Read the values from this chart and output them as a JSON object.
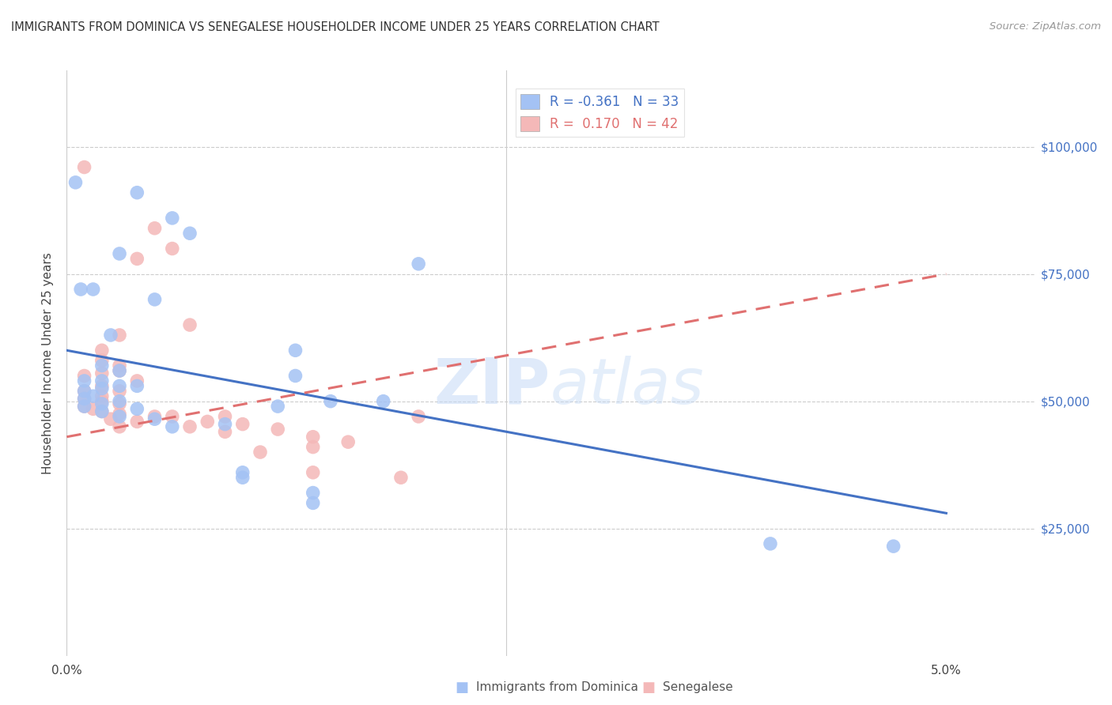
{
  "title": "IMMIGRANTS FROM DOMINICA VS SENEGALESE HOUSEHOLDER INCOME UNDER 25 YEARS CORRELATION CHART",
  "source": "Source: ZipAtlas.com",
  "ylabel": "Householder Income Under 25 years",
  "xmin": 0.0,
  "xmax": 0.055,
  "ymin": 0,
  "ymax": 115000,
  "yticks": [
    25000,
    50000,
    75000,
    100000
  ],
  "ytick_labels": [
    "$25,000",
    "$50,000",
    "$75,000",
    "$100,000"
  ],
  "color_blue": "#a4c2f4",
  "color_pink": "#f4b8b8",
  "color_blue_line": "#4472c4",
  "color_pink_line": "#e07070",
  "background_color": "#ffffff",
  "watermark": "ZIPatlas",
  "blue_points": [
    [
      0.0008,
      72000
    ],
    [
      0.005,
      70000
    ],
    [
      0.004,
      91000
    ],
    [
      0.006,
      86000
    ],
    [
      0.007,
      83000
    ],
    [
      0.003,
      79000
    ],
    [
      0.0015,
      72000
    ],
    [
      0.0025,
      63000
    ],
    [
      0.002,
      57000
    ],
    [
      0.003,
      56000
    ],
    [
      0.002,
      54000
    ],
    [
      0.001,
      54000
    ],
    [
      0.003,
      53000
    ],
    [
      0.002,
      52500
    ],
    [
      0.004,
      53000
    ],
    [
      0.001,
      52000
    ],
    [
      0.0015,
      51000
    ],
    [
      0.001,
      50500
    ],
    [
      0.003,
      50000
    ],
    [
      0.002,
      49500
    ],
    [
      0.001,
      49000
    ],
    [
      0.004,
      48500
    ],
    [
      0.002,
      48000
    ],
    [
      0.003,
      47000
    ],
    [
      0.005,
      46500
    ],
    [
      0.009,
      45500
    ],
    [
      0.006,
      45000
    ],
    [
      0.013,
      55000
    ],
    [
      0.015,
      50000
    ],
    [
      0.012,
      49000
    ],
    [
      0.018,
      50000
    ],
    [
      0.013,
      60000
    ],
    [
      0.01,
      36000
    ],
    [
      0.01,
      35000
    ],
    [
      0.014,
      32000
    ],
    [
      0.014,
      30000
    ],
    [
      0.04,
      22000
    ],
    [
      0.047,
      21500
    ],
    [
      0.02,
      77000
    ],
    [
      0.0005,
      93000
    ]
  ],
  "pink_points": [
    [
      0.001,
      96000
    ],
    [
      0.005,
      84000
    ],
    [
      0.006,
      80000
    ],
    [
      0.004,
      78000
    ],
    [
      0.007,
      65000
    ],
    [
      0.003,
      63000
    ],
    [
      0.002,
      60000
    ],
    [
      0.002,
      58000
    ],
    [
      0.003,
      57000
    ],
    [
      0.003,
      56000
    ],
    [
      0.002,
      55500
    ],
    [
      0.001,
      55000
    ],
    [
      0.004,
      54000
    ],
    [
      0.002,
      53000
    ],
    [
      0.003,
      52000
    ],
    [
      0.001,
      52000
    ],
    [
      0.002,
      51000
    ],
    [
      0.001,
      50500
    ],
    [
      0.002,
      50000
    ],
    [
      0.003,
      49500
    ],
    [
      0.001,
      49000
    ],
    [
      0.0015,
      48500
    ],
    [
      0.002,
      48000
    ],
    [
      0.003,
      47500
    ],
    [
      0.005,
      47000
    ],
    [
      0.009,
      47000
    ],
    [
      0.006,
      47000
    ],
    [
      0.0025,
      46500
    ],
    [
      0.004,
      46000
    ],
    [
      0.008,
      46000
    ],
    [
      0.01,
      45500
    ],
    [
      0.007,
      45000
    ],
    [
      0.003,
      45000
    ],
    [
      0.009,
      44000
    ],
    [
      0.012,
      44500
    ],
    [
      0.014,
      43000
    ],
    [
      0.016,
      42000
    ],
    [
      0.014,
      41000
    ],
    [
      0.011,
      40000
    ],
    [
      0.02,
      47000
    ],
    [
      0.014,
      36000
    ],
    [
      0.019,
      35000
    ]
  ],
  "blue_line": [
    [
      0.0,
      60000
    ],
    [
      0.05,
      28000
    ]
  ],
  "pink_line": [
    [
      0.0,
      43000
    ],
    [
      0.05,
      75000
    ]
  ]
}
